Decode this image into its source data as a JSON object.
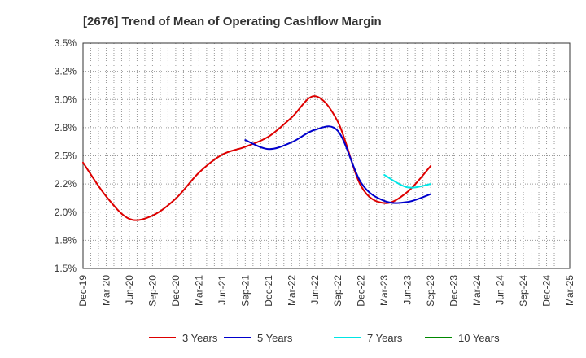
{
  "chart_data": {
    "type": "line",
    "title": "[2676]  Trend of Mean of Operating Cashflow Margin",
    "xlabel": "",
    "ylabel": "",
    "ylim": [
      1.5,
      3.5
    ],
    "y_ticks": [
      "3.5%",
      "3.2%",
      "3.0%",
      "2.8%",
      "2.5%",
      "2.2%",
      "2.0%",
      "1.8%",
      "1.5%"
    ],
    "y_tick_values": [
      3.5,
      3.25,
      3.0,
      2.75,
      2.5,
      2.25,
      2.0,
      1.75,
      1.5
    ],
    "categories": [
      "Dec-19",
      "Mar-20",
      "Jun-20",
      "Sep-20",
      "Dec-20",
      "Mar-21",
      "Jun-21",
      "Sep-21",
      "Dec-21",
      "Mar-22",
      "Jun-22",
      "Sep-22",
      "Dec-22",
      "Mar-23",
      "Jun-23",
      "Sep-23",
      "Dec-23",
      "Mar-24",
      "Jun-24",
      "Sep-24",
      "Dec-24",
      "Mar-25"
    ],
    "grid": true,
    "legend_position": "bottom",
    "series": [
      {
        "name": "3 Years",
        "color": "#dd0000",
        "values": [
          2.44,
          2.14,
          1.94,
          1.97,
          2.12,
          2.35,
          2.51,
          2.58,
          2.67,
          2.84,
          3.03,
          2.8,
          2.23,
          2.08,
          2.18,
          2.41,
          null,
          null,
          null,
          null,
          null,
          null
        ]
      },
      {
        "name": "5 Years",
        "color": "#0000cc",
        "values": [
          null,
          null,
          null,
          null,
          null,
          null,
          null,
          2.64,
          2.56,
          2.62,
          2.73,
          2.72,
          2.26,
          2.1,
          2.09,
          2.16,
          null,
          null,
          null,
          null,
          null,
          null
        ]
      },
      {
        "name": "7 Years",
        "color": "#00e5e5",
        "values": [
          null,
          null,
          null,
          null,
          null,
          null,
          null,
          null,
          null,
          null,
          null,
          null,
          null,
          2.33,
          2.22,
          2.25,
          null,
          null,
          null,
          null,
          null,
          null
        ]
      },
      {
        "name": "10 Years",
        "color": "#008800",
        "values": [
          null,
          null,
          null,
          null,
          null,
          null,
          null,
          null,
          null,
          null,
          null,
          null,
          null,
          null,
          null,
          null,
          null,
          null,
          null,
          null,
          null,
          null
        ]
      }
    ]
  }
}
